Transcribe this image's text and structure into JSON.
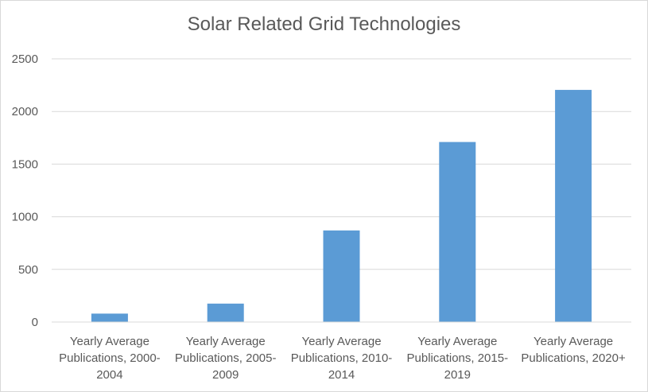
{
  "chart_data": {
    "type": "bar",
    "title": "Solar Related Grid Technologies",
    "categories": [
      [
        "Yearly Average",
        "Publications, 2000-",
        "2004"
      ],
      [
        "Yearly Average",
        "Publications, 2005-",
        "2009"
      ],
      [
        "Yearly Average",
        "Publications, 2010-",
        "2014"
      ],
      [
        "Yearly Average",
        "Publications, 2015-",
        "2019"
      ],
      [
        "Yearly Average",
        "Publications, 2020+"
      ]
    ],
    "values": [
      80,
      175,
      870,
      1710,
      2205
    ],
    "yticks": [
      "0",
      "500",
      "1000",
      "1500",
      "2000",
      "2500"
    ],
    "ylim": [
      0,
      2500
    ],
    "grid": true,
    "legend": "none",
    "xlabel": "",
    "ylabel": "",
    "colors": {
      "bar": "#5b9bd5",
      "grid": "#d9d9d9",
      "text": "#595959"
    }
  }
}
